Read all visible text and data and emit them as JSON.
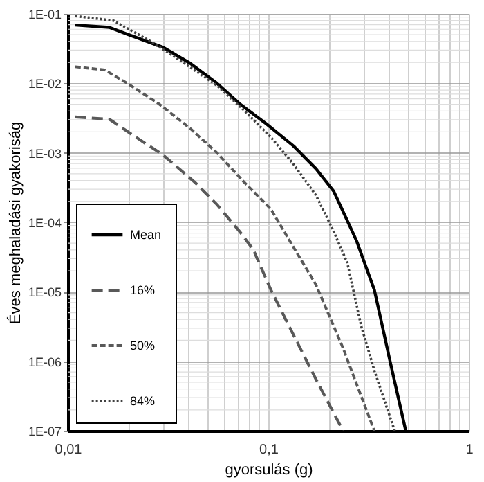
{
  "chart_data": {
    "type": "line",
    "xlabel": "gyorsulás (g)",
    "ylabel": "Éves meghaladási gyakoriság",
    "log": "xy",
    "grid": true,
    "legend": "bottom left",
    "marker": "none",
    "xlim": [
      0.01,
      1
    ],
    "ylim": [
      1e-07,
      0.1
    ],
    "xticks": [
      {
        "value": 0.01,
        "label": "0,01"
      },
      {
        "value": 0.02,
        "label": null
      },
      {
        "value": 0.03,
        "label": null
      },
      {
        "value": 0.04,
        "label": null
      },
      {
        "value": 0.05,
        "label": null
      },
      {
        "value": 0.06,
        "label": null
      },
      {
        "value": 0.07,
        "label": null
      },
      {
        "value": 0.08,
        "label": null
      },
      {
        "value": 0.09,
        "label": null
      },
      {
        "value": 0.1,
        "label": "0,1"
      },
      {
        "value": 0.2,
        "label": null
      },
      {
        "value": 0.3,
        "label": null
      },
      {
        "value": 0.4,
        "label": null
      },
      {
        "value": 0.5,
        "label": null
      },
      {
        "value": 0.6,
        "label": null
      },
      {
        "value": 0.7,
        "label": null
      },
      {
        "value": 0.8,
        "label": null
      },
      {
        "value": 0.9,
        "label": null
      },
      {
        "value": 1,
        "label": "1"
      }
    ],
    "yticks": [
      {
        "value": 1e-07,
        "label": "1E-07"
      },
      {
        "value": 1e-06,
        "label": "1E-06"
      },
      {
        "value": 1e-05,
        "label": "1E-05"
      },
      {
        "value": 0.0001,
        "label": "1E-04"
      },
      {
        "value": 0.001,
        "label": "1E-03"
      },
      {
        "value": 0.01,
        "label": "1E-02"
      },
      {
        "value": 0.1,
        "label": "1E-01"
      }
    ],
    "series": [
      {
        "name": "Mean",
        "color": "#000000",
        "line_style": "solid",
        "x": [
          0.0109,
          0.0161,
          0.0198,
          0.0299,
          0.0407,
          0.0555,
          0.0719,
          0.098,
          0.1335,
          0.173,
          0.212,
          0.275,
          0.338,
          0.405,
          0.485
        ],
        "values": [
          0.069,
          0.064,
          0.051,
          0.033,
          0.0195,
          0.01,
          0.0051,
          0.0026,
          0.00126,
          0.00059,
          0.00028,
          5.5e-05,
          1.07e-05,
          1e-06,
          1e-07
        ]
      },
      {
        "name": "16%",
        "color": "#595959",
        "line_style": "dashed",
        "x": [
          0.0109,
          0.0161,
          0.0219,
          0.0299,
          0.0429,
          0.0555,
          0.0719,
          0.084,
          0.103,
          0.1335,
          0.173,
          0.236
        ],
        "values": [
          0.00328,
          0.00305,
          0.00168,
          0.00093,
          0.00038,
          0.00018,
          7.4e-05,
          4.1e-05,
          1.07e-05,
          2.4e-06,
          5.5e-07,
          1e-07
        ]
      },
      {
        "name": "50%",
        "color": "#595959",
        "line_style": "dashed",
        "x": [
          0.0109,
          0.0153,
          0.0198,
          0.0284,
          0.0407,
          0.0555,
          0.0757,
          0.103,
          0.1236,
          0.173,
          0.236,
          0.275,
          0.338
        ],
        "values": [
          0.0173,
          0.0156,
          0.01,
          0.0051,
          0.00226,
          0.001,
          0.00038,
          0.000155,
          6.4e-05,
          1.26e-05,
          1.55e-06,
          4.8e-07,
          1e-07
        ]
      },
      {
        "name": "84%",
        "color": "#404040",
        "line_style": "dotted",
        "x": [
          0.0109,
          0.0169,
          0.0256,
          0.0367,
          0.0555,
          0.0757,
          0.103,
          0.1335,
          0.173,
          0.212,
          0.248,
          0.29,
          0.338,
          0.427
        ],
        "values": [
          0.093,
          0.08,
          0.041,
          0.021,
          0.0093,
          0.0041,
          0.00168,
          0.00069,
          0.000244,
          7.4e-05,
          2.6e-05,
          3.3e-06,
          7.4e-07,
          1e-07
        ]
      }
    ]
  }
}
